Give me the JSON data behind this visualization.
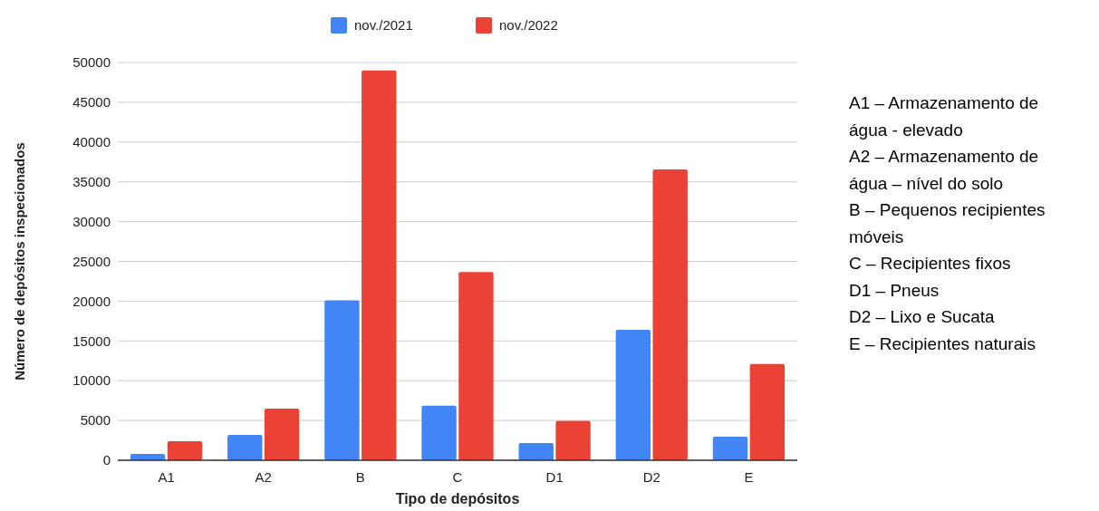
{
  "chart_data": {
    "type": "bar",
    "xlabel": "Tipo de depósitos",
    "ylabel": "Número de depósitos inspecionados",
    "categories": [
      "A1",
      "A2",
      "B",
      "C",
      "D1",
      "D2",
      "E"
    ],
    "series": [
      {
        "name": "nov./2021",
        "color": "#4285f4",
        "values": [
          800,
          3200,
          20100,
          6850,
          2170,
          16400,
          2970
        ]
      },
      {
        "name": "nov./2022",
        "color": "#ea4335",
        "values": [
          2400,
          6500,
          49000,
          23650,
          4950,
          36550,
          12100
        ]
      }
    ],
    "ylim": [
      0,
      50000
    ],
    "yticks": [
      0,
      5000,
      10000,
      15000,
      20000,
      25000,
      30000,
      35000,
      40000,
      45000,
      50000
    ],
    "grid": "y",
    "legend": "top",
    "annotations": [
      "A1 – Armazenamento de água - elevado",
      "A2 – Armazenamento de água – nível do solo",
      "B – Pequenos recipientes móveis",
      "C – Recipientes fixos",
      "D1 – Pneus",
      "D2 – Lixo e Sucata",
      "E – Recipientes naturais"
    ]
  }
}
